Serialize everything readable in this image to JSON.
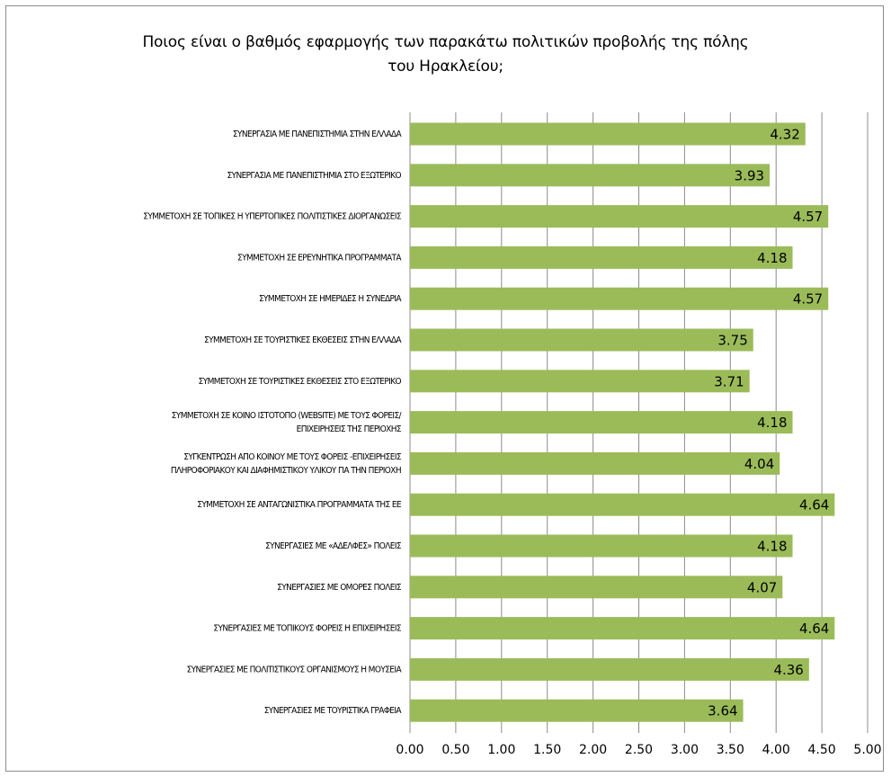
{
  "colors": {
    "bar": "#9bbb59",
    "gridline": "#8c8c8c",
    "text": "#000000"
  },
  "chart_data": {
    "type": "bar",
    "orientation": "horizontal",
    "title": "Ποιος είναι ο βαθμός εφαρμογής των παρακάτω πολιτικών προβολής της πόλης\nτου Ηρακλείου;",
    "xlabel": "",
    "ylabel": "",
    "xlim": [
      0,
      5
    ],
    "ticks": [
      "0.00",
      "0.50",
      "1.00",
      "1.50",
      "2.00",
      "2.50",
      "3.00",
      "3.50",
      "4.00",
      "4.50",
      "5.00"
    ],
    "grid": true,
    "legend": "none",
    "categories": [
      "ΣΥΝΕΡΓΑΣΙΑ ΜΕ ΠΑΝΕΠΙΣΤΗΜΙΑ ΣΤΗΝ ΕΛΛΑΔΑ",
      "ΣΥΝΕΡΓΑΣΙΑ ΜΕ ΠΑΝΕΠΙΣΤΗΜΙΑ ΣΤΟ ΕΞΩΤΕΡΙΚΟ",
      "ΣΥΜΜΕΤΟΧΗ ΣΕ ΤΟΠΙΚΕΣ Η ΥΠΕΡΤΟΠΙΚΕΣ ΠΟΛΙΤΙΣΤΙΚΕΣ ΔΙΟΡΓΑΝΩΣΕΙΣ",
      "ΣΥΜΜΕΤΟΧΗ ΣΕ ΕΡΕΥΝΗΤΙΚΑ ΠΡΟΓΡΑΜΜΑΤΑ",
      "ΣΥΜΜΕΤΟΧΗ ΣΕ ΗΜΕΡΙΔΕΣ Η ΣΥΝΕΔΡΙΑ",
      "ΣΥΜΜΕΤΟΧΗ ΣΕ ΤΟΥΡΙΣΤΙΚΕΣ ΕΚΘΕΣΕΙΣ ΣΤΗΝ ΕΛΛΑΔΑ",
      "ΣΥΜΜΕΤΟΧΗ ΣΕ ΤΟΥΡΙΣΤΙΚΕΣ ΕΚΘΕΣΕΙΣ ΣΤΟ ΕΞΩΤΕΡΙΚΟ",
      "ΣΥΜΜΕΤΟΧΗ ΣΕ ΚΟΙΝΟ ΙΣΤΟΤΟΠΟ (WEBSITE) ΜΕ ΤΟΥΣ ΦΟΡΕΙΣ/\nΕΠΙΧΕΙΡΗΣΕΙΣ ΤΗΣ ΠΕΡΙΟΧΗΣ",
      "ΣΥΓΚΕΝΤΡΩΣΗ ΑΠΟ ΚΟΙΝΟΥ ΜΕ ΤΟΥΣ ΦΟΡΕΙΣ -ΕΠΙΧΕΙΡΗΣΕΙΣ\nΠΛΗΡΟΦΟΡΙΑΚΟΥ ΚΑΙ ΔΙΑΦΗΜΙΣΤΙΚΟΥ ΥΛΙΚΟΥ ΓΙΑ ΤΗΝ ΠΕΡΙΟΧΗ",
      "ΣΥΜΜΕΤΟΧΗ ΣΕ ΑΝΤΑΓΩΝΙΣΤΙΚΑ ΠΡΟΓΡΑΜΜΑΤΑ ΤΗΣ ΕΕ",
      "ΣΥΝΕΡΓΑΣΙΕΣ ΜΕ «ΑΔΕΛΦΕΣ» ΠΟΛΕΙΣ",
      "ΣΥΝΕΡΓΑΣΙΕΣ ΜΕ ΟΜΟΡΕΣ ΠΟΛΕΙΣ",
      "ΣΥΝΕΡΓΑΣΙΕΣ ΜΕ ΤΟΠΙΚΟΥΣ ΦΟΡΕΙΣ Η ΕΠΙΧΕΙΡΗΣΕΙΣ",
      "ΣΥΝΕΡΓΑΣΙΕΣ ΜΕ ΠΟΛΙΤΙΣΤΙΚΟΥΣ ΟΡΓΑΝΙΣΜΟΥΣ Η ΜΟΥΣΕΙΑ",
      "ΣΥΝΕΡΓΑΣΙΕΣ ΜΕ ΤΟΥΡΙΣΤΙΚΑ ΓΡΑΦΕΙΑ"
    ],
    "values": [
      4.32,
      3.93,
      4.57,
      4.18,
      4.57,
      3.75,
      3.71,
      4.18,
      4.04,
      4.64,
      4.18,
      4.07,
      4.64,
      4.36,
      3.64
    ],
    "value_labels": [
      "4.32",
      "3.93",
      "4.57",
      "4.18",
      "4.57",
      "3.75",
      "3.71",
      "4.18",
      "4.04",
      "4.64",
      "4.18",
      "4.07",
      "4.64",
      "4.36",
      "3.64"
    ]
  }
}
